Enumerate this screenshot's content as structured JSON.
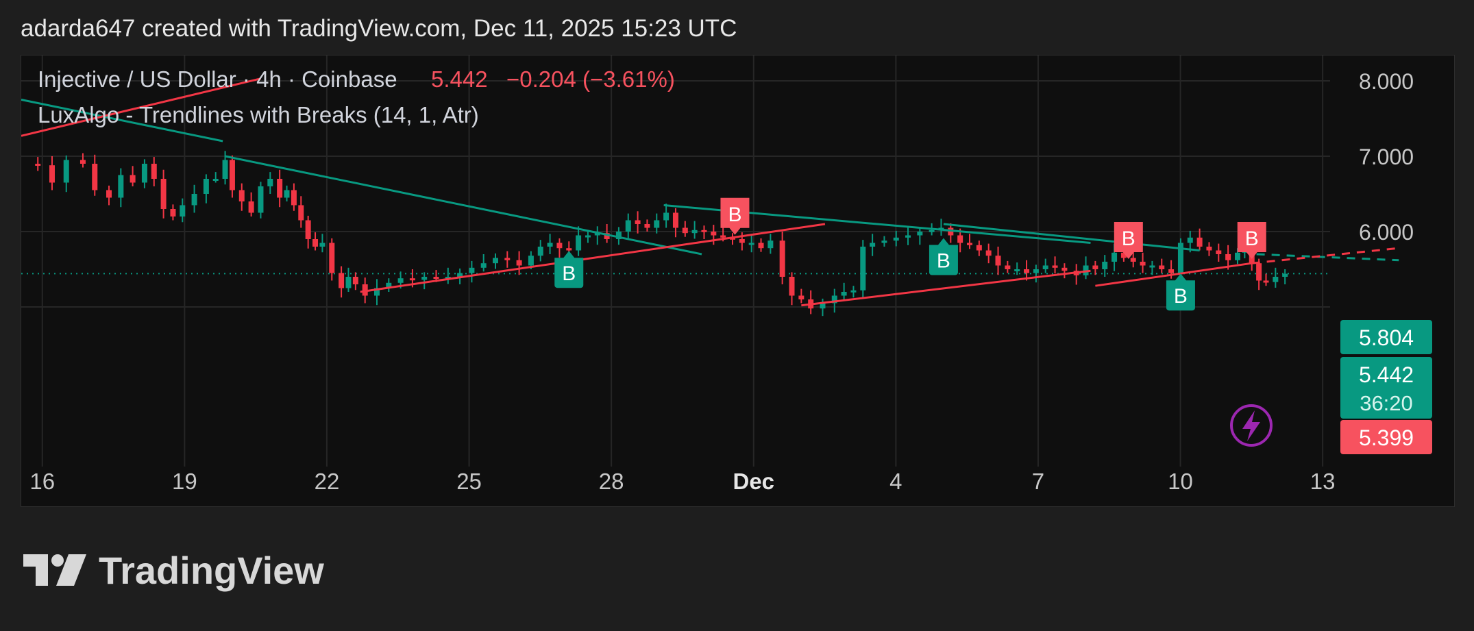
{
  "header": {
    "credit": "adarda647 created with TradingView.com, Dec 11, 2025 15:23 UTC"
  },
  "legend": {
    "symbol": "Injective / US Dollar · 4h · Coinbase",
    "price": "5.442",
    "change": "−0.204 (−3.61%)",
    "indicator": "LuxAlgo - Trendlines with Breaks (14, 1, Atr)"
  },
  "labels": {
    "last_price": "5.442",
    "countdown": "36:20",
    "upper_trend_value": "5.804",
    "lower_trend_value": "5.399",
    "break_marker": "B"
  },
  "brand": {
    "name": "TradingView"
  },
  "colors": {
    "up": "#089981",
    "down": "#f23645",
    "teal_line": "#089981",
    "red_line": "#f23645",
    "text_red": "#f7525f",
    "alert_purple": "#9c27b0"
  },
  "icons": [
    "tradingview-logo-icon",
    "lightning-alert-icon"
  ],
  "chart_data": {
    "type": "candlestick",
    "symbol": "INJUSD",
    "interval": "4h",
    "x_tick_labels": [
      "16",
      "19",
      "22",
      "25",
      "28",
      "Dec",
      "4",
      "7",
      "10",
      "13"
    ],
    "y_tick_labels": [
      "8.000",
      "7.000",
      "6.000"
    ],
    "ylim": [
      4.5,
      8.5
    ],
    "last_price": 5.442,
    "grid": true,
    "ohlc_path": [
      [
        14.99,
        6.9
      ],
      [
        15.3,
        6.88
      ],
      [
        15.6,
        6.65
      ],
      [
        15.9,
        6.95
      ],
      [
        16.25,
        6.9
      ],
      [
        16.5,
        6.55
      ],
      [
        16.8,
        6.45
      ],
      [
        17.05,
        6.75
      ],
      [
        17.3,
        6.65
      ],
      [
        17.55,
        6.9
      ],
      [
        17.75,
        6.7
      ],
      [
        17.95,
        6.3
      ],
      [
        18.15,
        6.2
      ],
      [
        18.35,
        6.35
      ],
      [
        18.6,
        6.5
      ],
      [
        18.85,
        6.7
      ],
      [
        19.05,
        6.7
      ],
      [
        19.25,
        6.95
      ],
      [
        19.4,
        6.55
      ],
      [
        19.6,
        6.4
      ],
      [
        19.8,
        6.25
      ],
      [
        20.0,
        6.6
      ],
      [
        20.2,
        6.7
      ],
      [
        20.4,
        6.45
      ],
      [
        20.55,
        6.55
      ],
      [
        20.7,
        6.35
      ],
      [
        20.85,
        6.15
      ],
      [
        21.0,
        5.9
      ],
      [
        21.15,
        5.8
      ],
      [
        21.3,
        5.85
      ],
      [
        21.5,
        5.45
      ],
      [
        21.7,
        5.25
      ],
      [
        21.85,
        5.4
      ],
      [
        22.0,
        5.3
      ],
      [
        22.2,
        5.15
      ],
      [
        22.45,
        5.25
      ],
      [
        22.7,
        5.32
      ],
      [
        22.95,
        5.38
      ],
      [
        23.2,
        5.36
      ],
      [
        23.45,
        5.4
      ],
      [
        23.7,
        5.38
      ],
      [
        23.95,
        5.4
      ],
      [
        24.2,
        5.45
      ],
      [
        24.45,
        5.52
      ],
      [
        24.7,
        5.58
      ],
      [
        24.95,
        5.65
      ],
      [
        25.2,
        5.62
      ],
      [
        25.45,
        5.55
      ],
      [
        25.7,
        5.68
      ],
      [
        25.9,
        5.8
      ],
      [
        26.1,
        5.85
      ],
      [
        26.3,
        5.78
      ],
      [
        26.5,
        5.75
      ],
      [
        26.7,
        5.95
      ],
      [
        26.9,
        5.95
      ],
      [
        27.1,
        5.98
      ],
      [
        27.3,
        5.9
      ],
      [
        27.55,
        6.0
      ],
      [
        27.75,
        6.15
      ],
      [
        27.95,
        6.1
      ],
      [
        28.15,
        6.05
      ],
      [
        28.35,
        6.15
      ],
      [
        28.55,
        6.25
      ],
      [
        28.75,
        6.05
      ],
      [
        28.95,
        5.98
      ],
      [
        29.15,
        6.02
      ],
      [
        29.35,
        6.0
      ],
      [
        29.55,
        5.95
      ],
      [
        29.75,
        5.92
      ],
      [
        29.95,
        5.9
      ],
      [
        30.15,
        5.85
      ],
      [
        30.35,
        5.85
      ],
      [
        30.55,
        5.78
      ],
      [
        30.75,
        5.88
      ],
      [
        31.0,
        5.4
      ],
      [
        31.2,
        5.15
      ],
      [
        31.4,
        5.1
      ],
      [
        31.6,
        4.98
      ],
      [
        31.85,
        5.05
      ],
      [
        32.1,
        5.15
      ],
      [
        32.3,
        5.2
      ],
      [
        32.5,
        5.22
      ],
      [
        32.7,
        5.8
      ],
      [
        32.9,
        5.85
      ],
      [
        33.15,
        5.88
      ],
      [
        33.4,
        5.92
      ],
      [
        33.65,
        5.95
      ],
      [
        33.9,
        6.0
      ],
      [
        34.15,
        6.02
      ],
      [
        34.35,
        6.05
      ],
      [
        34.55,
        5.95
      ],
      [
        34.75,
        5.85
      ],
      [
        34.95,
        5.82
      ],
      [
        35.15,
        5.75
      ],
      [
        35.35,
        5.68
      ],
      [
        35.55,
        5.55
      ],
      [
        35.75,
        5.5
      ],
      [
        35.95,
        5.5
      ],
      [
        36.15,
        5.45
      ],
      [
        36.35,
        5.5
      ],
      [
        36.55,
        5.55
      ],
      [
        36.75,
        5.52
      ],
      [
        36.95,
        5.48
      ],
      [
        37.2,
        5.42
      ],
      [
        37.4,
        5.55
      ],
      [
        37.6,
        5.5
      ],
      [
        37.8,
        5.6
      ],
      [
        38.0,
        5.72
      ],
      [
        38.2,
        5.65
      ],
      [
        38.4,
        5.6
      ],
      [
        38.6,
        5.55
      ],
      [
        38.8,
        5.55
      ],
      [
        39.0,
        5.5
      ],
      [
        39.2,
        5.45
      ],
      [
        39.4,
        5.85
      ],
      [
        39.6,
        5.92
      ],
      [
        39.8,
        5.8
      ],
      [
        40.0,
        5.75
      ],
      [
        40.2,
        5.7
      ],
      [
        40.4,
        5.62
      ],
      [
        40.6,
        5.72
      ],
      [
        40.75,
        5.9
      ],
      [
        40.9,
        5.58
      ],
      [
        41.05,
        5.35
      ],
      [
        41.2,
        5.33
      ],
      [
        41.4,
        5.4
      ],
      [
        41.6,
        5.44
      ]
    ],
    "trendlines": [
      {
        "color": "teal",
        "points": [
          [
            14.95,
            7.75
          ],
          [
            19.2,
            7.2
          ]
        ]
      },
      {
        "color": "red",
        "points": [
          [
            14.95,
            7.27
          ],
          [
            20.0,
            8.03
          ]
        ]
      },
      {
        "color": "teal",
        "points": [
          [
            19.25,
            7.0
          ],
          [
            29.3,
            5.7
          ]
        ]
      },
      {
        "color": "red",
        "points": [
          [
            22.1,
            5.2
          ],
          [
            31.9,
            6.1
          ]
        ]
      },
      {
        "color": "teal",
        "points": [
          [
            28.5,
            6.35
          ],
          [
            37.5,
            5.85
          ]
        ]
      },
      {
        "color": "red",
        "points": [
          [
            31.4,
            5.02
          ],
          [
            37.5,
            5.48
          ]
        ]
      },
      {
        "color": "teal",
        "points": [
          [
            34.4,
            6.1
          ],
          [
            39.8,
            5.75
          ]
        ]
      },
      {
        "color": "red",
        "points": [
          [
            37.6,
            5.28
          ],
          [
            40.9,
            5.58
          ]
        ]
      },
      {
        "color": "teal",
        "style": "dashed",
        "points": [
          [
            41.0,
            5.7
          ],
          [
            44.0,
            5.62
          ]
        ]
      },
      {
        "color": "red",
        "style": "dashed",
        "points": [
          [
            40.9,
            5.58
          ],
          [
            44.0,
            5.78
          ]
        ]
      }
    ],
    "break_markers": [
      {
        "x": 30.0,
        "y": 5.92,
        "type": "bearish"
      },
      {
        "x": 26.5,
        "y": 5.78,
        "type": "bullish"
      },
      {
        "x": 34.4,
        "y": 5.95,
        "type": "bullish"
      },
      {
        "x": 38.3,
        "y": 5.6,
        "type": "bearish"
      },
      {
        "x": 39.4,
        "y": 5.48,
        "type": "bullish"
      },
      {
        "x": 40.9,
        "y": 5.6,
        "type": "bearish"
      }
    ],
    "price_levels": {
      "upper_trend": 5.804,
      "last": 5.442,
      "lower_trend": 5.399
    }
  }
}
